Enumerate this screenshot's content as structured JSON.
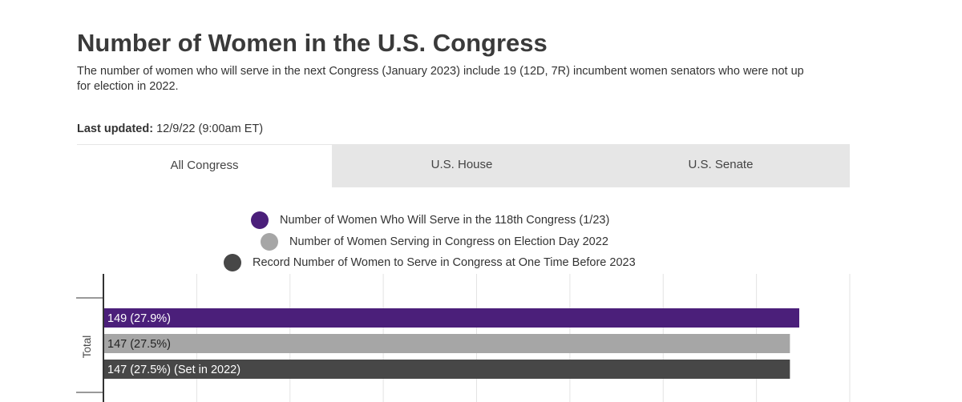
{
  "header": {
    "title": "Number of Women in the U.S. Congress",
    "subtitle": "The number of women who will serve in the next Congress (January 2023) include 19 (12D, 7R) incumbent women senators who were not up for election in 2022.",
    "last_updated_label": "Last updated:",
    "last_updated_value": "12/9/22 (9:00am ET)"
  },
  "tabs": [
    {
      "label": "All Congress",
      "active": true
    },
    {
      "label": "U.S. House",
      "active": false
    },
    {
      "label": "U.S. Senate",
      "active": false
    }
  ],
  "colors": {
    "series_118th": "#4b1f7a",
    "series_election_day": "#a6a6a6",
    "series_record": "#474747"
  },
  "chart_data": {
    "type": "bar",
    "orientation": "horizontal",
    "categories": [
      "Total"
    ],
    "series": [
      {
        "name": "Number of Women Who Will Serve in the 118th Congress (1/23)",
        "values": [
          149
        ],
        "label": "149 (27.9%)",
        "color": "#4b1f7a",
        "label_color": "#ffffff"
      },
      {
        "name": "Number of Women Serving in Congress on Election Day 2022",
        "values": [
          147
        ],
        "label": "147 (27.5%)",
        "color": "#a6a6a6",
        "label_color": "#222222"
      },
      {
        "name": "Record Number of Women to Serve in Congress at One Time Before 2023",
        "values": [
          147
        ],
        "label": "147 (27.5%) (Set in 2022)",
        "color": "#474747",
        "label_color": "#ffffff"
      }
    ],
    "xlim": [
      0,
      160
    ],
    "grid": true,
    "legend_placement": "top-center"
  }
}
